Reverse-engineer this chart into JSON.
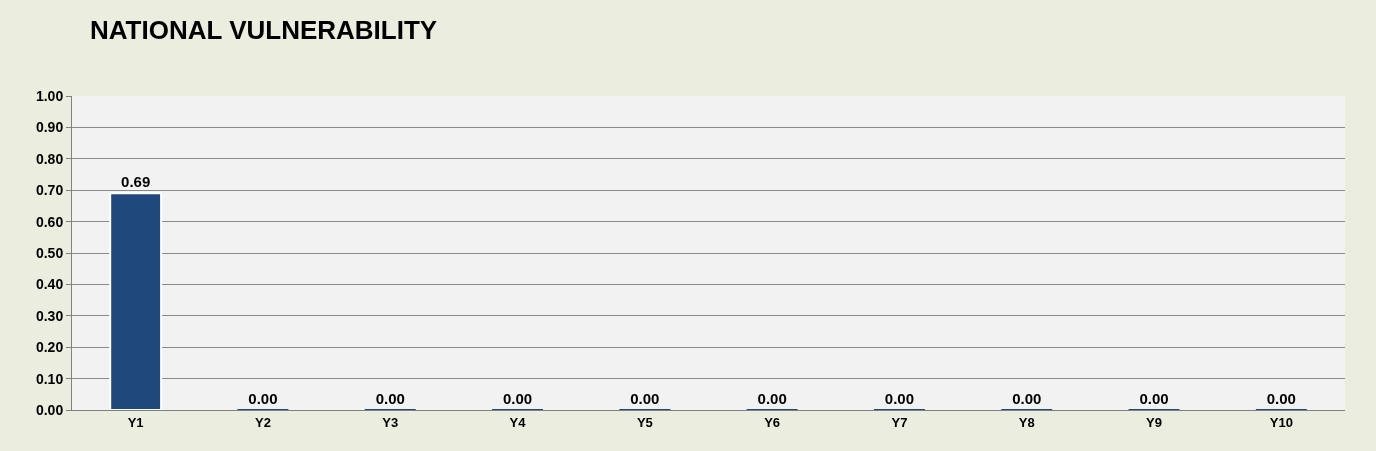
{
  "chart_data": {
    "type": "bar",
    "title": "NATIONAL VULNERABILITY",
    "categories": [
      "Y1",
      "Y2",
      "Y3",
      "Y4",
      "Y5",
      "Y6",
      "Y7",
      "Y8",
      "Y9",
      "Y10"
    ],
    "values": [
      0.69,
      0,
      0,
      0,
      0,
      0,
      0,
      0,
      0,
      0
    ],
    "color": "#1f497d",
    "ylim": [
      0,
      1
    ],
    "yticks": [
      {
        "value": 0,
        "label": "0.00"
      },
      {
        "value": 0.1,
        "label": "0.10"
      },
      {
        "value": 0.2,
        "label": "0.20"
      },
      {
        "value": 0.3,
        "label": "0.30"
      },
      {
        "value": 0.4,
        "label": "0.40"
      },
      {
        "value": 0.5,
        "label": "0.50"
      },
      {
        "value": 0.6,
        "label": "0.60"
      },
      {
        "value": 0.7,
        "label": "0.70"
      },
      {
        "value": 0.8,
        "label": "0.80"
      },
      {
        "value": 0.9,
        "label": "0.90"
      },
      {
        "value": 1,
        "label": "1.00"
      }
    ],
    "value_labels": [
      "0.69",
      "0.00",
      "0.00",
      "0.00",
      "0.00",
      "0.00",
      "0.00",
      "0.00",
      "0.00",
      "0.00"
    ],
    "grid": "y",
    "legend": false
  }
}
